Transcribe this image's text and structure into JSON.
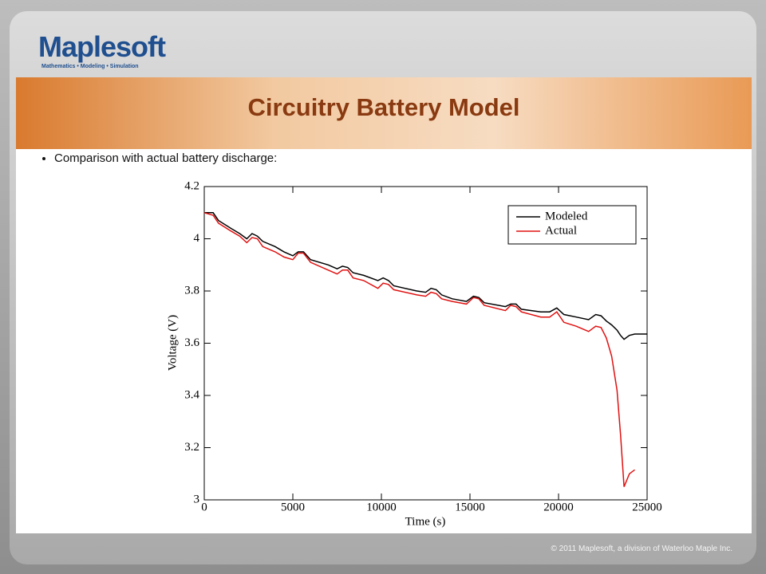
{
  "logo": "Maplesoft",
  "tagline": "Mathematics • Modeling • Simulation",
  "title": "Circuitry Battery Model",
  "bullet": "Comparison with actual battery discharge:",
  "footer": "© 2011 Maplesoft, a division of Waterloo Maple Inc.",
  "chart_data": {
    "type": "line",
    "xlabel": "Time (s)",
    "ylabel": "Voltage (V)",
    "x": [
      0,
      500,
      800,
      1500,
      2000,
      2400,
      2700,
      3000,
      3300,
      4000,
      4500,
      5000,
      5300,
      5600,
      6000,
      7000,
      7500,
      7800,
      8100,
      8400,
      9000,
      9800,
      10100,
      10400,
      10700,
      12000,
      12500,
      12800,
      13100,
      13400,
      14000,
      14800,
      15200,
      15500,
      15800,
      17000,
      17300,
      17600,
      17900,
      19000,
      19500,
      19900,
      20300,
      21000,
      21700,
      22100,
      22400,
      22700,
      23000,
      23300,
      23500,
      23700,
      24000,
      24300,
      25000
    ],
    "series": [
      {
        "name": "Modeled",
        "color": "#000000",
        "values": [
          4.1,
          4.1,
          4.07,
          4.04,
          4.02,
          4.0,
          4.02,
          4.01,
          3.99,
          3.97,
          3.95,
          3.935,
          3.95,
          3.95,
          3.92,
          3.9,
          3.885,
          3.895,
          3.89,
          3.87,
          3.86,
          3.84,
          3.85,
          3.84,
          3.82,
          3.8,
          3.795,
          3.81,
          3.805,
          3.785,
          3.77,
          3.76,
          3.78,
          3.775,
          3.755,
          3.74,
          3.75,
          3.75,
          3.73,
          3.72,
          3.72,
          3.735,
          3.71,
          3.7,
          3.69,
          3.71,
          3.705,
          3.685,
          3.67,
          3.65,
          3.63,
          3.615,
          3.63,
          3.635,
          3.635
        ]
      },
      {
        "name": "Actual",
        "color": "#e01010",
        "values": [
          4.1,
          4.09,
          4.06,
          4.03,
          4.01,
          3.985,
          4.005,
          4.0,
          3.97,
          3.95,
          3.93,
          3.92,
          3.945,
          3.945,
          3.91,
          3.88,
          3.865,
          3.88,
          3.88,
          3.85,
          3.84,
          3.81,
          3.83,
          3.825,
          3.805,
          3.785,
          3.78,
          3.795,
          3.79,
          3.77,
          3.76,
          3.75,
          3.775,
          3.77,
          3.745,
          3.725,
          3.745,
          3.74,
          3.72,
          3.7,
          3.7,
          3.72,
          3.68,
          3.665,
          3.645,
          3.665,
          3.66,
          3.62,
          3.55,
          3.42,
          3.25,
          3.05,
          3.1,
          3.115,
          null
        ]
      }
    ],
    "xlim": [
      0,
      25000
    ],
    "xticks": [
      0,
      5000,
      10000,
      15000,
      20000,
      25000
    ],
    "ylim": [
      3,
      4.2
    ],
    "yticks": [
      3,
      3.2,
      3.4,
      3.6,
      3.8,
      4,
      4.2
    ],
    "legend": "upper right",
    "grid": false
  }
}
